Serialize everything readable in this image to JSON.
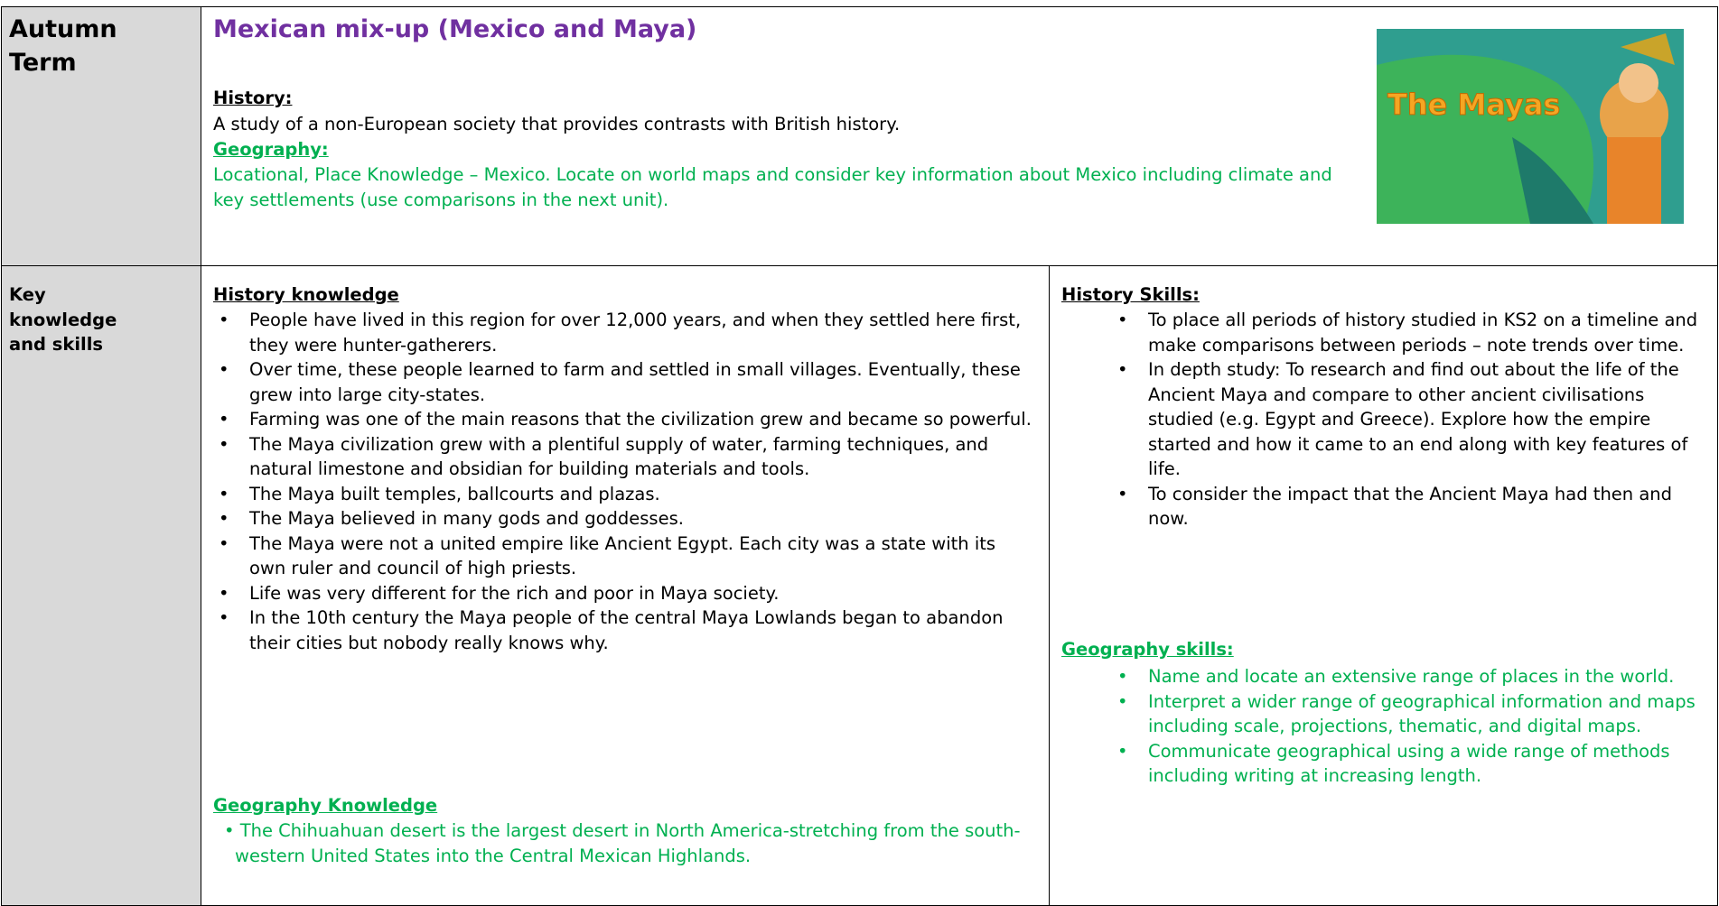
{
  "header": {
    "term": "Autumn Term",
    "title": "Mexican mix-up (Mexico and Maya)",
    "history_heading": "History:",
    "history_text": "A study of a non-European society that provides contrasts with British history.",
    "geography_heading": "Geography:",
    "geography_text": "Locational, Place Knowledge – Mexico. Locate on world maps and consider key information about Mexico including climate and key settlements (use comparisons in the next unit).",
    "image_label": "The Mayas"
  },
  "body": {
    "label": "Key knowledge and skills",
    "history_knowledge": {
      "heading": "History knowledge",
      "items": [
        "People have lived in this region for over 12,000 years, and when they settled here first, they were hunter-gatherers.",
        "Over time, these people learned to farm and settled in small villages. Eventually, these grew into large city-states.",
        "Farming was one of the main reasons that the civilization grew and became so powerful.",
        "The Maya civilization grew with a plentiful supply of water, farming techniques, and natural limestone and obsidian for building materials and tools.",
        "The Maya built temples, ballcourts and plazas.",
        "The Maya believed in many gods and goddesses.",
        "The Maya were not a united empire like Ancient Egypt. Each city was a state with its own ruler and council of high priests.",
        "Life was very different for the rich and poor in Maya society.",
        "In the 10th century the Maya people of the central Maya Lowlands began to abandon their cities but nobody really knows why."
      ]
    },
    "geography_knowledge": {
      "heading": "Geography Knowledge",
      "items": [
        "The Chihuahuan desert is the largest desert in North America-stretching from the south-western United States into the Central Mexican Highlands."
      ]
    },
    "history_skills": {
      "heading": "History Skills:",
      "items": [
        "To place all periods of history studied in KS2 on a timeline and make comparisons between periods – note trends over time.",
        "In depth study: To research and find out about the life of the Ancient Maya and compare to other ancient civilisations studied (e.g. Egypt and Greece).  Explore how the empire started and how it came to an end along with key features of life.",
        "To consider the impact that the Ancient Maya had then and now."
      ]
    },
    "geography_skills": {
      "heading": "Geography skills:",
      "items": [
        "Name and locate an extensive range of places in the world.",
        "Interpret a wider range of geographical information and maps including scale, projections, thematic, and digital maps.",
        "Communicate geographical using a wide range of methods including writing at increasing length."
      ]
    }
  }
}
